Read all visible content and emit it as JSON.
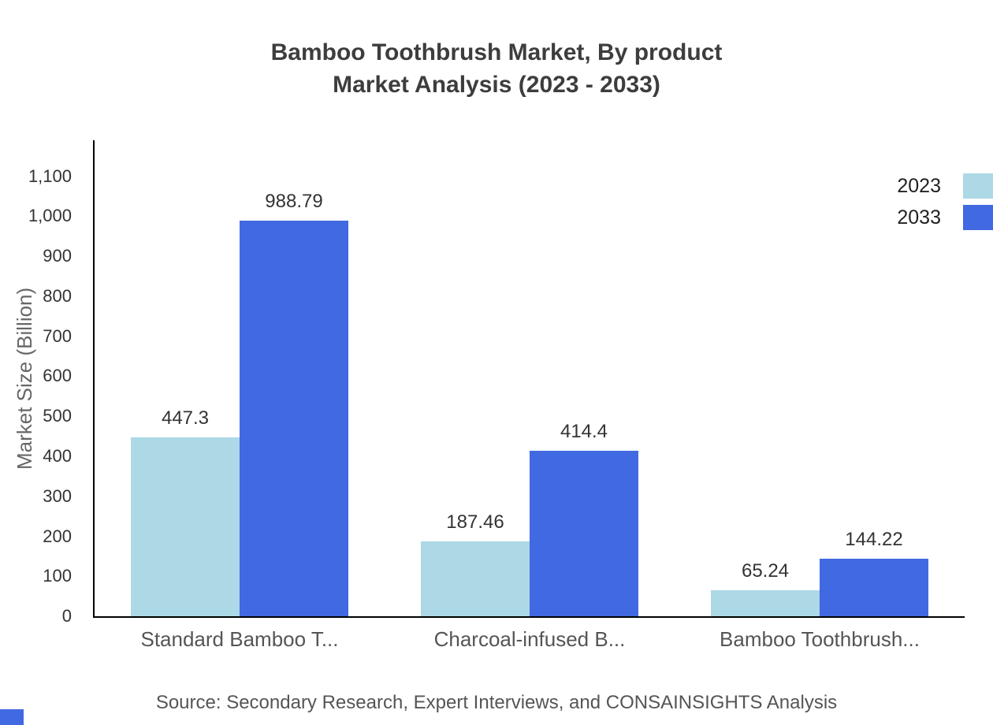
{
  "chart_data": {
    "type": "bar",
    "title_lines": [
      "Bamboo Toothbrush Market, By product",
      "Market Analysis (2023 - 2033)"
    ],
    "xlabel": "",
    "ylabel": "Market Size (Billion)",
    "categories": [
      "Standard Bamboo T...",
      "Charcoal-infused B...",
      "Bamboo Toothbrush..."
    ],
    "series": [
      {
        "name": "2023",
        "color": "#ADD8E6",
        "values": [
          447.3,
          187.46,
          65.24
        ]
      },
      {
        "name": "2033",
        "color": "#4169E1",
        "values": [
          988.79,
          414.4,
          144.22
        ]
      }
    ],
    "yticks": [
      0,
      100,
      200,
      300,
      400,
      500,
      600,
      700,
      800,
      900,
      1000,
      1100
    ],
    "ylim": [
      0,
      1190
    ],
    "grid": false,
    "legend_position": "top-right",
    "source": "Source: Secondary Research, Expert Interviews, and CONSAINSIGHTS Analysis",
    "accent_color": "#4169E1"
  }
}
